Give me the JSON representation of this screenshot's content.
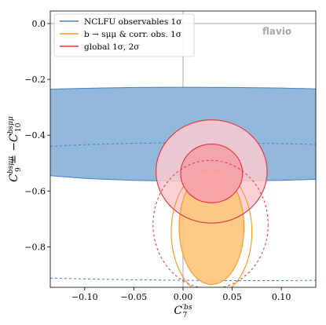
{
  "chart_data": {
    "type": "contour",
    "xlim": [
      -0.135,
      0.135
    ],
    "ylim": [
      -0.945,
      0.045
    ],
    "xticks": [
      -0.1,
      -0.05,
      0.0,
      0.05,
      0.1
    ],
    "xtick_labels": [
      "−0.10",
      "−0.05",
      "0.00",
      "0.05",
      "0.10"
    ],
    "yticks": [
      0.0,
      -0.2,
      -0.4,
      -0.6,
      -0.8
    ],
    "ytick_labels": [
      "0.0",
      "−0.2",
      "−0.4",
      "−0.6",
      "−0.8"
    ],
    "xlabel_main": "C",
    "xlabel_sup": "′bs",
    "xlabel_sub": "7",
    "ylabel_c9_main": "C",
    "ylabel_c9_sup": "bsμμ",
    "ylabel_c9_sub": "9",
    "ylabel_eq": " = −",
    "ylabel_c10_main": "C",
    "ylabel_c10_sup": "bsμμ",
    "ylabel_c10_sub": "10",
    "watermark": "flavio",
    "reference_lines": {
      "x": 0.0,
      "y": 0.0
    },
    "series": [
      {
        "name": "NCLFU observables 1σ",
        "fill": "#92b8db",
        "edge": "#4a7fb8",
        "band_1sigma": {
          "x": [
            -0.135,
            -0.1,
            -0.05,
            0.0,
            0.05,
            0.1,
            0.135
          ],
          "upper": [
            -0.235,
            -0.232,
            -0.229,
            -0.228,
            -0.229,
            -0.231,
            -0.234
          ],
          "lower": [
            -0.545,
            -0.555,
            -0.562,
            -0.565,
            -0.564,
            -0.562,
            -0.558
          ]
        },
        "band_2sigma_dashed": {
          "x": [
            -0.135,
            -0.1,
            -0.05,
            0.0,
            0.05,
            0.1,
            0.135
          ],
          "upper": [
            -0.44,
            -0.434,
            -0.429,
            -0.427,
            -0.428,
            -0.43,
            -0.433
          ],
          "lower": [
            -0.912,
            -0.915,
            -0.918,
            -0.92,
            -0.921,
            -0.921,
            -0.92
          ]
        }
      },
      {
        "name": "b → sμμ & corr. obs. 1σ",
        "fill": "#fdc57e",
        "edge": "#f39a20",
        "ellipse_1sigma": {
          "cx": 0.029,
          "cy": -0.73,
          "rx": 0.033,
          "ry": 0.205
        },
        "ellipse_2sigma": {
          "cx": 0.029,
          "cy": -0.747,
          "rx": 0.041,
          "ry": 0.228
        }
      },
      {
        "name": "global 1σ, 2σ",
        "fill_2sigma": "#f9c9cf",
        "fill_1sigma": "#f6a1aa",
        "edge": "#e8303a",
        "ellipse_1sigma": {
          "cx": 0.029,
          "cy": -0.537,
          "rx": 0.0315,
          "ry": 0.105
        },
        "ellipse_2sigma": {
          "cx": 0.029,
          "cy": -0.53,
          "rx": 0.0565,
          "ry": 0.185
        },
        "ellipse_extra_dashed": {
          "cx": 0.028,
          "cy": -0.72,
          "rx": 0.0585,
          "ry": 0.23
        }
      }
    ],
    "legend": {
      "position": "top-left",
      "entries": [
        {
          "label": "NCLFU observables 1σ",
          "color": "#4a7fb8"
        },
        {
          "label": "b → sμμ & corr. obs. 1σ",
          "color": "#f39a20"
        },
        {
          "label": "global 1σ, 2σ",
          "color": "#e8303a"
        }
      ]
    }
  }
}
